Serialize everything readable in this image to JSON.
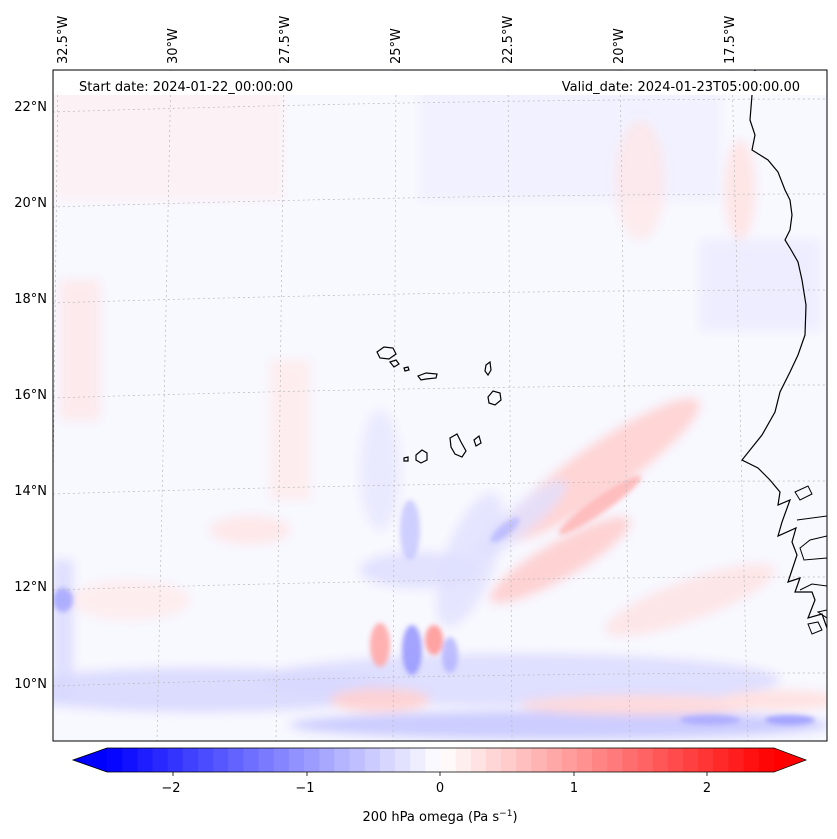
{
  "header": {
    "start_date": "Start date: 2024-01-22_00:00:00",
    "valid_date": "Valid_date: 2024-01-23T05:00:00.00"
  },
  "map": {
    "top_lon_labels": [
      "32.5°W",
      "30°W",
      "27.5°W",
      "25°W",
      "22.5°W",
      "20°W",
      "17.5°W"
    ],
    "left_lat_labels": [
      "22°N",
      "20°N",
      "18°N",
      "16°N",
      "14°N",
      "12°N",
      "10°N"
    ],
    "gridlines": true,
    "gridline_style": "dotted"
  },
  "colorbar": {
    "label_prefix": "200 hPa omega (Pa s",
    "label_exp": "−1",
    "label_suffix": ")",
    "ticks": [
      "−2",
      "−1",
      "0",
      "1",
      "2"
    ],
    "range": [
      -2.75,
      2.75
    ],
    "extend": "both",
    "cmap": "bwr",
    "colors": {
      "negative": "#0000ff",
      "zero": "#ffffff",
      "positive": "#ff0000"
    }
  }
}
